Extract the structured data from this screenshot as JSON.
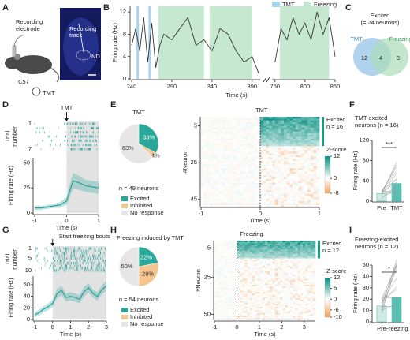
{
  "figure": {
    "A": {
      "letter": "A",
      "electrode_lines": [
        "Recording",
        "electrode"
      ],
      "strain": "C57",
      "odor": "TMT",
      "track_lines": [
        "Recording",
        "track"
      ],
      "region": "ND"
    },
    "B": {
      "letter": "B",
      "ylabel": "Firing rate (Hz)",
      "xlabel": "Time (s)",
      "ylim": [
        0,
        13
      ],
      "yticks": [
        0,
        4,
        8,
        12
      ],
      "legend": [
        {
          "name": "TMT",
          "color": "#a9d3ea"
        },
        {
          "name": "Freezing",
          "color": "#c6e8d0"
        }
      ],
      "trace_color": "#333333",
      "segments": [
        {
          "xlim": [
            240,
            400
          ],
          "xticks": [
            240,
            290,
            340,
            390
          ],
          "tmt": [
            [
              246,
              249
            ],
            [
              261,
              264
            ]
          ],
          "freezing": [
            [
              273,
              330
            ],
            [
              337,
              390
            ]
          ],
          "x": [
            240,
            245,
            250,
            255,
            260,
            265,
            270,
            275,
            280,
            290,
            300,
            310,
            320,
            330,
            340,
            350,
            360,
            370,
            380,
            390,
            398
          ],
          "values": [
            6,
            9,
            5,
            11,
            3,
            10,
            2,
            6,
            8,
            7,
            9,
            11,
            6,
            7,
            5,
            9,
            8,
            5,
            3,
            4,
            1
          ]
        },
        {
          "xlim": [
            745,
            850
          ],
          "xticks": [
            750,
            800,
            850
          ],
          "tmt": [],
          "freezing": [
            [
              758,
              840
            ]
          ],
          "x": [
            750,
            760,
            770,
            780,
            790,
            800,
            810,
            820,
            830,
            840,
            850
          ],
          "values": [
            3,
            9,
            7,
            11,
            8,
            10,
            7,
            12,
            8,
            11,
            4
          ]
        }
      ]
    },
    "C": {
      "letter": "C",
      "title_lines": [
        "Excited",
        "(= 24 neurons)"
      ],
      "sets": [
        {
          "name": "TMT",
          "color": "#9dc8e8"
        },
        {
          "name": "Freezing",
          "color": "#aadcb8"
        }
      ],
      "counts": [
        12,
        4,
        8
      ]
    },
    "D": {
      "letter": "D",
      "stimulus": "TMT",
      "trial_label": [
        "Trial",
        "number"
      ],
      "trial_ticks": [
        1,
        7
      ],
      "ylabel": "Firing rate (Hz)",
      "xlabel": "Time (s)",
      "xlim": [
        -1,
        1
      ],
      "xticks": [
        -1,
        0,
        1
      ],
      "ylim": [
        0,
        55
      ],
      "yticks": [
        0,
        25,
        50
      ],
      "color": "#2aa198",
      "x": [
        -1,
        -0.8,
        -0.6,
        -0.4,
        -0.2,
        0,
        0.2,
        0.4,
        0.6,
        0.8,
        1
      ],
      "values": [
        5,
        5,
        6,
        7,
        8,
        12,
        32,
        30,
        27,
        26,
        25
      ],
      "error": [
        2,
        2,
        2,
        2,
        3,
        4,
        8,
        7,
        6,
        6,
        6
      ]
    },
    "E": {
      "letter": "E",
      "pie": {
        "title": "TMT",
        "values": [
          33,
          4,
          63
        ],
        "value_labels": [
          "33%",
          "4%",
          "63%"
        ],
        "colors": [
          "#2aa89a",
          "#f6c48f",
          "#e6e6e6"
        ],
        "n_label": "n = 49 neurons"
      },
      "legend": [
        "Excited",
        "Inhibited",
        "No response"
      ],
      "heatmap": {
        "title": "TMT",
        "ylabel": "#Neuron",
        "ylim": [
          0,
          49
        ],
        "yticks": [
          5,
          25,
          45
        ],
        "xlim": [
          -1,
          1
        ],
        "xticks": [
          -1,
          0,
          1
        ],
        "xlabel": "Time (s)",
        "excited_lines": [
          "Excited",
          "n = 16"
        ],
        "excited_rows": 16,
        "zlabel": "Z-score",
        "zlim": [
          -8,
          12
        ],
        "zticks": [
          12,
          0,
          -8
        ]
      }
    },
    "F": {
      "letter": "F",
      "title_lines": [
        "TMT-excited",
        "neurons (n = 16)"
      ],
      "ylabel": "Firing rate (Hz)",
      "categories": [
        "Pre",
        "TMT"
      ],
      "values": [
        15,
        35
      ],
      "ylim": [
        0,
        120
      ],
      "yticks": [
        0,
        40,
        80,
        120
      ],
      "significance": "***",
      "colors": [
        "#cfe9e4",
        "#5bbfb1"
      ]
    },
    "G": {
      "letter": "G",
      "stimulus": "Start freezing bouts",
      "trial_label": [
        "Trial",
        "number"
      ],
      "trial_ticks": [
        1,
        5,
        10
      ],
      "ylabel": "Firing rate (Hz)",
      "xlabel": "Time (s)",
      "xlim": [
        -1,
        3
      ],
      "xticks": [
        -1,
        0,
        1,
        2,
        3
      ],
      "ylim": [
        0,
        75
      ],
      "yticks": [
        0,
        20,
        40,
        60
      ],
      "color": "#2aa198",
      "x": [
        -1,
        -0.75,
        -0.5,
        -0.25,
        0,
        0.25,
        0.5,
        0.75,
        1,
        1.25,
        1.5,
        1.75,
        2,
        2.25,
        2.5,
        2.75,
        3
      ],
      "values": [
        8,
        12,
        18,
        22,
        28,
        45,
        50,
        38,
        40,
        38,
        35,
        48,
        55,
        45,
        40,
        52,
        58
      ],
      "error": [
        4,
        5,
        5,
        6,
        6,
        8,
        8,
        7,
        7,
        7,
        7,
        8,
        8,
        7,
        7,
        8,
        8
      ]
    },
    "H": {
      "letter": "H",
      "pie": {
        "title": "Freezing induced by TMT",
        "values": [
          22,
          28,
          50
        ],
        "value_labels": [
          "22%",
          "28%",
          "50%"
        ],
        "colors": [
          "#2aa89a",
          "#f6c48f",
          "#e6e6e6"
        ],
        "n_label": "n = 54 neurons"
      },
      "legend": [
        "Excited",
        "Inhibited",
        "No response"
      ],
      "heatmap": {
        "title": "Freezing",
        "ylabel": "#Neuron",
        "ylim": [
          0,
          54
        ],
        "yticks": [
          5,
          25,
          50
        ],
        "xlim": [
          -1,
          3.5
        ],
        "xticks": [
          -1,
          0,
          1,
          2,
          3
        ],
        "xlabel": "Time (s)",
        "excited_lines": [
          "Excited",
          "n = 12"
        ],
        "excited_rows": 12,
        "zlabel": "Z-score",
        "zlim": [
          -10,
          12
        ],
        "zticks": [
          12,
          6,
          0,
          -6,
          -10
        ]
      }
    },
    "I": {
      "letter": "I",
      "title_lines": [
        "Freezing-excited",
        "neurons (n = 12)"
      ],
      "ylabel": "Firing rate (Hz)",
      "categories": [
        "Pre",
        "Freezing"
      ],
      "values": [
        14,
        22
      ],
      "ylim": [
        0,
        50
      ],
      "yticks": [
        0,
        10,
        20,
        30,
        40,
        50
      ],
      "significance": "*",
      "colors": [
        "#cfe9e4",
        "#5bbfb1"
      ]
    }
  }
}
